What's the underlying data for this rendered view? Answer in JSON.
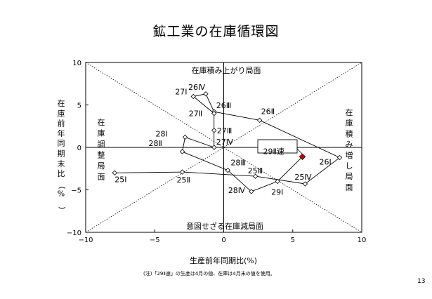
{
  "page": {
    "title": "鉱工業の在庫循環図",
    "footnote": "(注)「29Ⅱ速」の生産は4月の値、在庫は4月末の値を使用。",
    "page_number": "13"
  },
  "colors": {
    "axes": "#000000",
    "series": "#000000",
    "highlight": "#cc0000"
  },
  "chart_data": {
    "type": "scatter",
    "title": "鉱工業の在庫循環図",
    "xlabel": "生産前年同期比(%)",
    "ylabel": "在庫前年同期末比(%)",
    "xlim": [
      -10,
      10
    ],
    "ylim": [
      -10,
      10
    ],
    "xticks": [
      "−10",
      "−5",
      "0",
      "5",
      "10"
    ],
    "yticks": [
      "10",
      "5",
      "0",
      "−5",
      "−10"
    ],
    "grid": false,
    "diagonal_guides": true,
    "quadrants": {
      "top": "在庫積み上がり局面",
      "right": "在庫積み増し局面",
      "left": "在庫調整局面",
      "bottom": "意図せざる在庫減局面"
    },
    "points": [
      {
        "label": "25Ⅰ",
        "x": -7.9,
        "y": -3.0
      },
      {
        "label": "25Ⅱ",
        "x": -3.0,
        "y": -2.9
      },
      {
        "label": "25Ⅲ",
        "x": 2.3,
        "y": -3.4
      },
      {
        "label": "25Ⅳ",
        "x": 5.9,
        "y": -4.3
      },
      {
        "label": "26Ⅰ",
        "x": 8.4,
        "y": -1.2
      },
      {
        "label": "26Ⅱ",
        "x": 2.6,
        "y": 3.2
      },
      {
        "label": "26Ⅲ",
        "x": -0.7,
        "y": 4.2
      },
      {
        "label": "26Ⅳ",
        "x": -1.3,
        "y": 6.3
      },
      {
        "label": "27Ⅰ",
        "x": -2.2,
        "y": 6.0
      },
      {
        "label": "27Ⅱ",
        "x": -0.7,
        "y": 4.0
      },
      {
        "label": "27Ⅲ",
        "x": -0.7,
        "y": 2.0
      },
      {
        "label": "27Ⅳ",
        "x": -0.7,
        "y": 0.0
      },
      {
        "label": "28Ⅰ",
        "x": -2.8,
        "y": 1.2
      },
      {
        "label": "28Ⅱ",
        "x": -3.0,
        "y": -0.5
      },
      {
        "label": "28Ⅲ",
        "x": 0.3,
        "y": -2.7
      },
      {
        "label": "28Ⅳ",
        "x": 2.0,
        "y": -5.2
      },
      {
        "label": "29Ⅰ",
        "x": 3.9,
        "y": -4.0
      },
      {
        "label": "29Ⅱ速",
        "x": 5.7,
        "y": -1.1,
        "highlight": true
      }
    ]
  }
}
